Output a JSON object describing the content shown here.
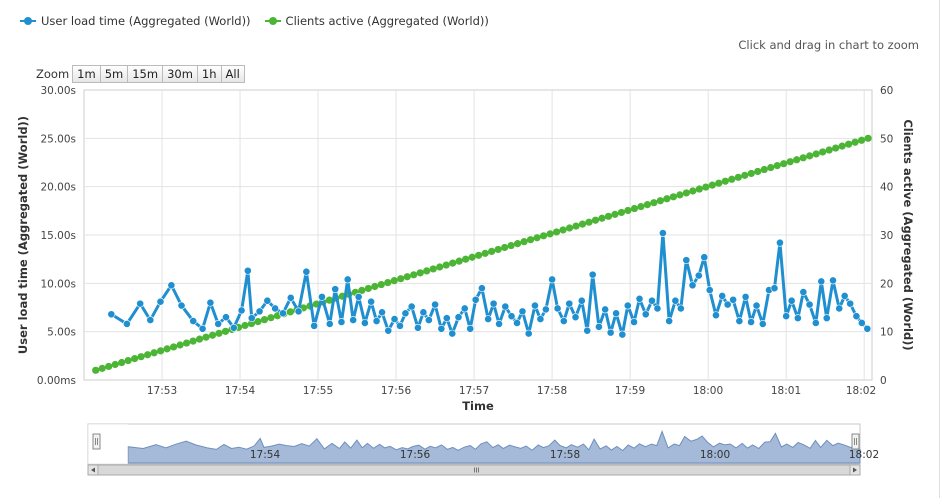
{
  "legend": [
    {
      "label": "User load time (Aggregated (World))",
      "color": "#1f8fd0"
    },
    {
      "label": "Clients active (Aggregated (World))",
      "color": "#4db535"
    }
  ],
  "zoom_hint": "Click and drag in chart to zoom",
  "range_selector": {
    "label": "Zoom",
    "buttons": [
      "1m",
      "5m",
      "15m",
      "30m",
      "1h",
      "All"
    ]
  },
  "navigator": {
    "labels": [
      "17:54",
      "17:56",
      "17:58",
      "18:00",
      "18:02"
    ]
  },
  "chart_data": {
    "type": "line",
    "xlabel": "Time",
    "x_tick_labels": [
      "17:53",
      "17:54",
      "17:55",
      "17:56",
      "17:57",
      "17:58",
      "17:59",
      "18:00",
      "18:01",
      "18:02"
    ],
    "y_left": {
      "label": "User load time (Aggregated (World))",
      "range": [
        0,
        30
      ],
      "tick_labels": [
        "0.00ms",
        "5.00s",
        "10.00s",
        "15.00s",
        "20.00s",
        "25.00s",
        "30.00s"
      ]
    },
    "y_right": {
      "label": "Clients active (Aggregated (World))",
      "range": [
        0,
        60
      ],
      "tick_labels": [
        "0",
        "10",
        "20",
        "30",
        "40",
        "50",
        "60"
      ]
    },
    "grid": true,
    "series": [
      {
        "name": "User load time (Aggregated (World))",
        "color": "#1f8fd0",
        "axis": "left",
        "unit": "s",
        "x_minutes": [
          52.35,
          52.55,
          52.72,
          52.85,
          52.98,
          53.12,
          53.25,
          53.4,
          53.52,
          53.62,
          53.72,
          53.82,
          53.92,
          54.02,
          54.1,
          54.15,
          54.25,
          54.35,
          54.45,
          54.55,
          54.65,
          54.75,
          54.85,
          54.95,
          55.05,
          55.15,
          55.22,
          55.3,
          55.38,
          55.45,
          55.52,
          55.6,
          55.68,
          55.75,
          55.82,
          55.9,
          55.98,
          56.05,
          56.12,
          56.2,
          56.28,
          56.35,
          56.42,
          56.5,
          56.58,
          56.65,
          56.72,
          56.8,
          56.88,
          56.95,
          57.02,
          57.1,
          57.18,
          57.25,
          57.32,
          57.4,
          57.48,
          57.55,
          57.62,
          57.7,
          57.78,
          57.85,
          57.92,
          58.0,
          58.07,
          58.15,
          58.22,
          58.3,
          58.38,
          58.45,
          58.52,
          58.6,
          58.68,
          58.75,
          58.82,
          58.9,
          58.97,
          59.05,
          59.12,
          59.2,
          59.28,
          59.35,
          59.42,
          59.5,
          59.58,
          59.65,
          59.72,
          59.8,
          59.88,
          59.95,
          60.02,
          60.1,
          60.18,
          60.25,
          60.32,
          60.4,
          60.48,
          60.55,
          60.62,
          60.7,
          60.78,
          60.85,
          60.92,
          61.0,
          61.07,
          61.15,
          61.22,
          61.3,
          61.38,
          61.45,
          61.52,
          61.6,
          61.68,
          61.75,
          61.82,
          61.9,
          61.97,
          62.04
        ],
        "values": [
          6.8,
          5.8,
          7.9,
          6.2,
          8.1,
          9.8,
          7.7,
          6.1,
          5.3,
          8.0,
          5.8,
          6.5,
          5.4,
          7.2,
          11.3,
          6.4,
          7.1,
          8.2,
          7.4,
          6.9,
          8.5,
          7.1,
          11.2,
          5.6,
          8.6,
          5.8,
          9.4,
          6.0,
          10.4,
          6.2,
          8.6,
          5.9,
          8.1,
          6.1,
          7.0,
          5.1,
          6.3,
          5.6,
          6.9,
          7.6,
          5.4,
          7.0,
          6.2,
          7.8,
          5.3,
          6.4,
          4.8,
          6.5,
          7.4,
          5.3,
          8.3,
          9.5,
          6.3,
          7.9,
          5.8,
          7.6,
          6.6,
          5.9,
          7.1,
          4.8,
          7.7,
          6.3,
          7.3,
          10.4,
          7.4,
          6.1,
          7.9,
          6.5,
          8.2,
          5.1,
          10.9,
          5.5,
          7.3,
          4.9,
          6.9,
          4.7,
          7.7,
          6.0,
          8.4,
          6.8,
          8.2,
          7.4,
          15.2,
          6.1,
          8.2,
          7.4,
          12.4,
          9.8,
          10.8,
          12.7,
          9.3,
          6.7,
          8.7,
          7.8,
          8.3,
          6.1,
          8.6,
          6.0,
          7.7,
          5.8,
          9.3,
          9.5,
          14.2,
          6.6,
          8.2,
          6.4,
          9.1,
          7.8,
          5.9,
          10.2,
          6.4,
          10.3,
          7.4,
          8.7,
          7.9,
          6.6,
          5.9,
          5.3
        ]
      },
      {
        "name": "Clients active (Aggregated (World))",
        "color": "#4db535",
        "axis": "right",
        "x_start_minutes": 52.15,
        "x_end_minutes": 62.05,
        "count": 120,
        "start_value": 2,
        "end_value": 50
      }
    ]
  }
}
